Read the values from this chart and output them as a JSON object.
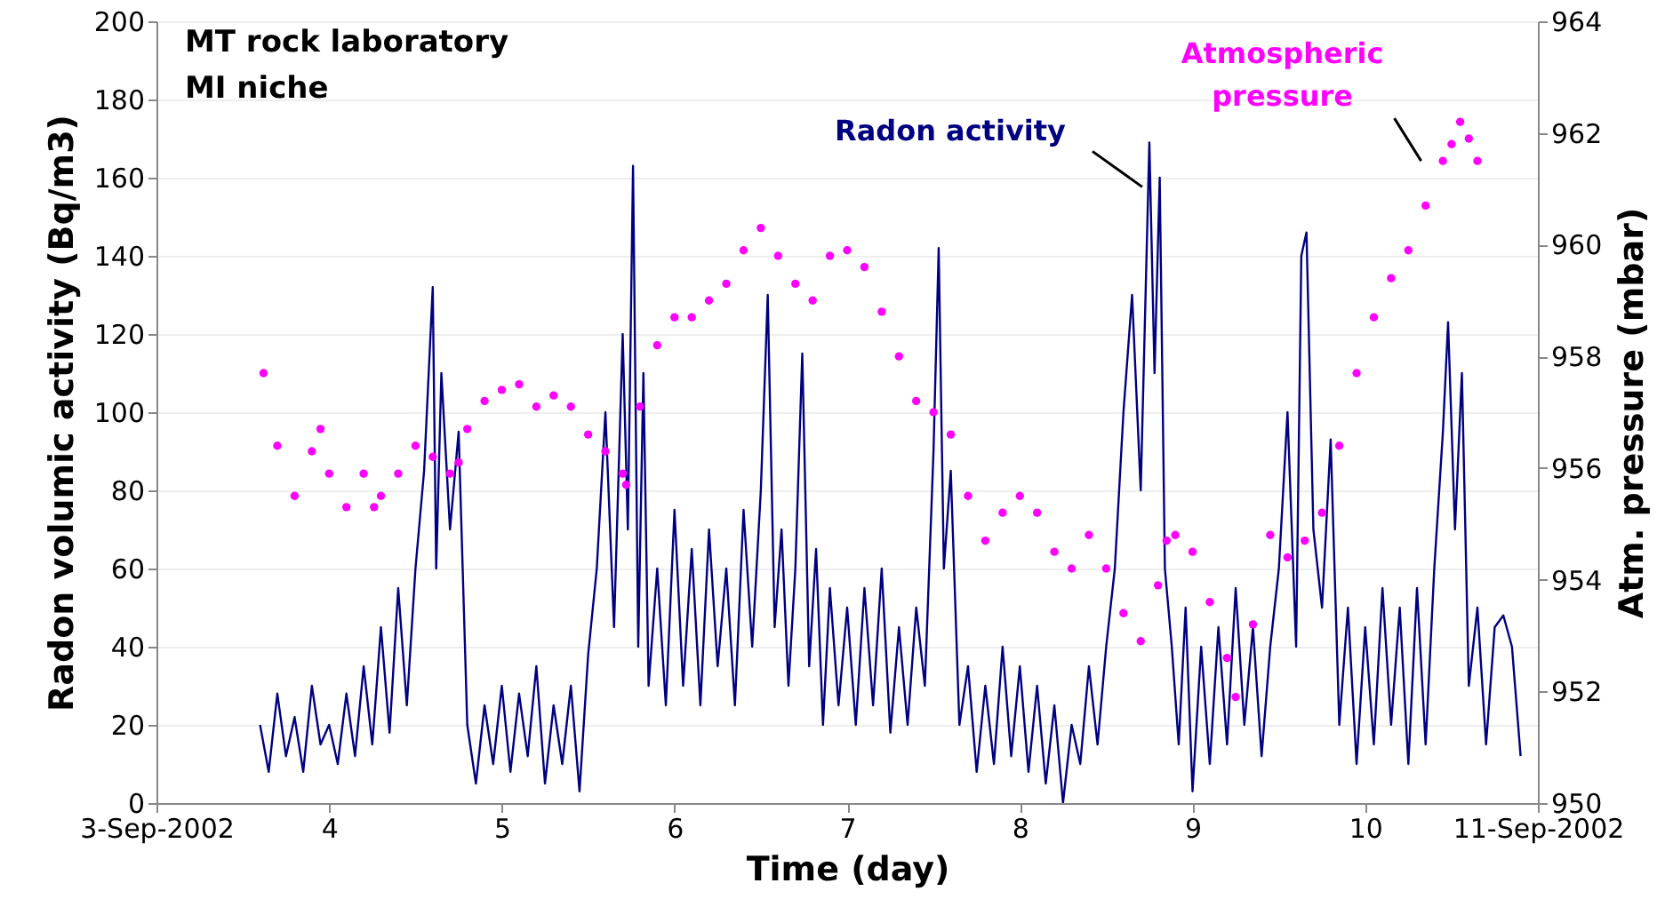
{
  "chart_data": {
    "type": "line",
    "title": "MT rock laboratory",
    "subtitle": "MI niche",
    "xlabel": "Time (day)",
    "ylabel": "Radon volumic activity (Bq/m3)",
    "y2label": "Atm. pressure (mbar)",
    "xlim": [
      3,
      11
    ],
    "xticks": [
      {
        "value": 3,
        "label": "3-Sep-2002"
      },
      4,
      5,
      6,
      7,
      8,
      9,
      10,
      {
        "value": 11,
        "label": "11-Sep-2002"
      }
    ],
    "ylim": [
      0,
      200
    ],
    "yticks": [
      0,
      20,
      40,
      60,
      80,
      100,
      120,
      140,
      160,
      180,
      200
    ],
    "y2lim": [
      950,
      964
    ],
    "y2ticks": [
      950,
      952,
      954,
      956,
      958,
      960,
      962,
      964
    ],
    "grid": "y",
    "series": [
      {
        "name": "Radon activity",
        "type": "line",
        "color": "#000080",
        "x": [
          3.6,
          3.65,
          3.7,
          3.75,
          3.8,
          3.85,
          3.9,
          3.95,
          4,
          4.05,
          4.1,
          4.15,
          4.2,
          4.25,
          4.3,
          4.35,
          4.4,
          4.45,
          4.5,
          4.55,
          4.6,
          4.62,
          4.65,
          4.7,
          4.75,
          4.8,
          4.85,
          4.9,
          4.95,
          5,
          5.05,
          5.1,
          5.15,
          5.2,
          5.25,
          5.3,
          5.35,
          5.4,
          5.45,
          5.5,
          5.55,
          5.6,
          5.65,
          5.7,
          5.73,
          5.76,
          5.79,
          5.82,
          5.85,
          5.9,
          5.95,
          6,
          6.05,
          6.1,
          6.15,
          6.2,
          6.25,
          6.3,
          6.35,
          6.4,
          6.45,
          6.5,
          6.54,
          6.58,
          6.62,
          6.66,
          6.7,
          6.74,
          6.78,
          6.82,
          6.86,
          6.9,
          6.95,
          7,
          7.05,
          7.1,
          7.15,
          7.2,
          7.25,
          7.3,
          7.35,
          7.4,
          7.45,
          7.5,
          7.53,
          7.56,
          7.6,
          7.65,
          7.7,
          7.75,
          7.8,
          7.85,
          7.9,
          7.95,
          8,
          8.05,
          8.1,
          8.15,
          8.2,
          8.25,
          8.3,
          8.35,
          8.4,
          8.45,
          8.5,
          8.55,
          8.6,
          8.65,
          8.7,
          8.75,
          8.78,
          8.81,
          8.84,
          8.88,
          8.92,
          8.96,
          9,
          9.05,
          9.1,
          9.15,
          9.2,
          9.25,
          9.3,
          9.35,
          9.4,
          9.45,
          9.5,
          9.55,
          9.6,
          9.63,
          9.66,
          9.7,
          9.75,
          9.8,
          9.85,
          9.9,
          9.95,
          10,
          10.05,
          10.1,
          10.15,
          10.2,
          10.25,
          10.3,
          10.35,
          10.4,
          10.45,
          10.48,
          10.52,
          10.56,
          10.6,
          10.65,
          10.7,
          10.75,
          10.8,
          10.85,
          10.9
        ],
        "values": [
          20,
          8,
          28,
          12,
          22,
          8,
          30,
          15,
          20,
          10,
          28,
          12,
          35,
          15,
          45,
          18,
          55,
          25,
          60,
          85,
          132,
          60,
          110,
          70,
          95,
          20,
          5,
          25,
          10,
          30,
          8,
          28,
          12,
          35,
          5,
          25,
          10,
          30,
          3,
          38,
          60,
          100,
          45,
          120,
          70,
          163,
          40,
          110,
          30,
          60,
          25,
          75,
          30,
          65,
          25,
          70,
          35,
          60,
          25,
          75,
          40,
          80,
          130,
          45,
          70,
          30,
          60,
          115,
          35,
          65,
          20,
          55,
          25,
          50,
          20,
          55,
          25,
          60,
          18,
          45,
          20,
          50,
          30,
          90,
          142,
          60,
          85,
          20,
          35,
          8,
          30,
          10,
          40,
          12,
          35,
          8,
          30,
          5,
          25,
          0,
          20,
          10,
          35,
          15,
          40,
          60,
          100,
          130,
          80,
          169,
          110,
          160,
          60,
          40,
          15,
          50,
          3,
          40,
          10,
          45,
          15,
          55,
          20,
          45,
          12,
          40,
          60,
          100,
          40,
          140,
          146,
          70,
          50,
          93,
          20,
          50,
          10,
          45,
          15,
          55,
          20,
          50,
          10,
          55,
          15,
          60,
          95,
          123,
          70,
          110,
          30,
          50,
          15,
          45,
          48,
          40,
          12
        ]
      },
      {
        "name": "Atmospheric pressure",
        "type": "scatter",
        "axis": "y2",
        "marker": "circle",
        "color": "#ff00ff",
        "x": [
          3.62,
          3.7,
          3.8,
          3.9,
          3.95,
          4,
          4.1,
          4.2,
          4.26,
          4.3,
          4.4,
          4.5,
          4.6,
          4.7,
          4.75,
          4.8,
          4.9,
          5,
          5.1,
          5.2,
          5.3,
          5.4,
          5.5,
          5.6,
          5.7,
          5.72,
          5.8,
          5.9,
          6,
          6.1,
          6.2,
          6.3,
          6.4,
          6.5,
          6.6,
          6.7,
          6.8,
          6.9,
          7,
          7.1,
          7.2,
          7.3,
          7.4,
          7.5,
          7.6,
          7.7,
          7.8,
          7.9,
          8,
          8.1,
          8.2,
          8.3,
          8.4,
          8.5,
          8.6,
          8.7,
          8.8,
          8.85,
          8.9,
          9,
          9.1,
          9.2,
          9.25,
          9.35,
          9.45,
          9.55,
          9.65,
          9.75,
          9.85,
          9.95,
          10.05,
          10.15,
          10.25,
          10.35,
          10.45,
          10.5,
          10.55,
          10.6,
          10.65
        ],
        "values": [
          957.7,
          956.4,
          955.5,
          956.3,
          956.7,
          955.9,
          955.3,
          955.9,
          955.3,
          955.5,
          955.9,
          956.4,
          956.2,
          955.9,
          956.1,
          956.7,
          957.2,
          957.4,
          957.5,
          957.1,
          957.3,
          957.1,
          956.6,
          956.3,
          955.9,
          955.7,
          957.1,
          958.2,
          958.7,
          958.7,
          959,
          959.3,
          959.9,
          960.3,
          959.8,
          959.3,
          959,
          959.8,
          959.9,
          959.6,
          958.8,
          958,
          957.2,
          957,
          956.6,
          955.5,
          954.7,
          955.2,
          955.5,
          955.2,
          954.5,
          954.2,
          954.8,
          954.2,
          953.4,
          952.9,
          953.9,
          954.7,
          954.8,
          954.5,
          953.6,
          952.6,
          951.9,
          953.2,
          954.8,
          954.4,
          954.7,
          955.2,
          956.4,
          957.7,
          958.7,
          959.4,
          959.9,
          960.7,
          961.5,
          961.8,
          962.2,
          961.9,
          961.5
        ]
      }
    ]
  }
}
